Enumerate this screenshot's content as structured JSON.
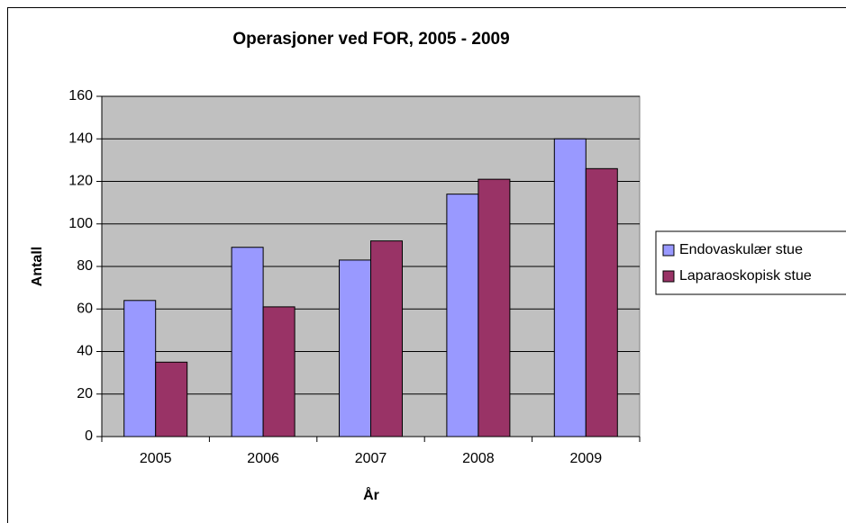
{
  "chart_data": {
    "type": "bar",
    "title": "Operasjoner ved FOR, 2005 - 2009",
    "x_label": "År",
    "y_label": "Antall",
    "categories": [
      "2005",
      "2006",
      "2007",
      "2008",
      "2009"
    ],
    "series": [
      {
        "name": "Endovaskulær stue",
        "color": "#9999ff",
        "values": [
          64,
          89,
          83,
          114,
          140
        ]
      },
      {
        "name": "Laparaoskopisk stue",
        "color": "#993366",
        "values": [
          35,
          61,
          92,
          121,
          126
        ]
      }
    ],
    "ylim": [
      0,
      160
    ],
    "yticks": [
      0,
      20,
      40,
      60,
      80,
      100,
      120,
      140,
      160
    ],
    "grid": true,
    "legend": "right"
  }
}
